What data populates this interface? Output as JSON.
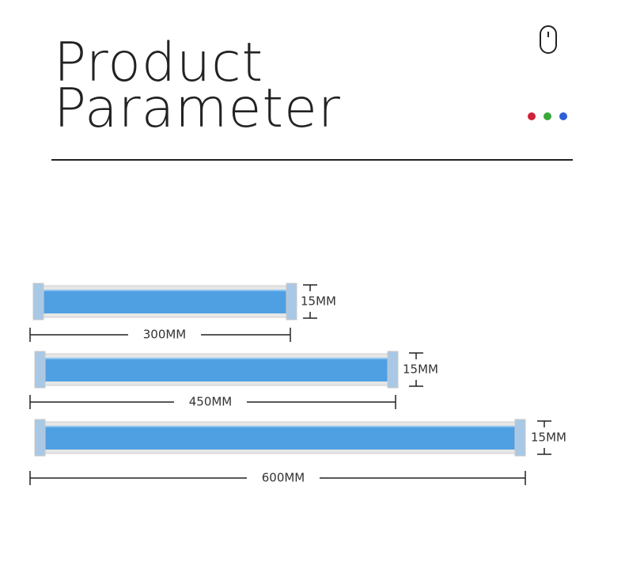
{
  "header": {
    "title_line1": "Product",
    "title_line2": "Parameter"
  },
  "tubes": [
    {
      "length": "300MM",
      "height": "15MM"
    },
    {
      "length": "450MM",
      "height": "15MM"
    },
    {
      "length": "600MM",
      "height": "15MM"
    }
  ]
}
